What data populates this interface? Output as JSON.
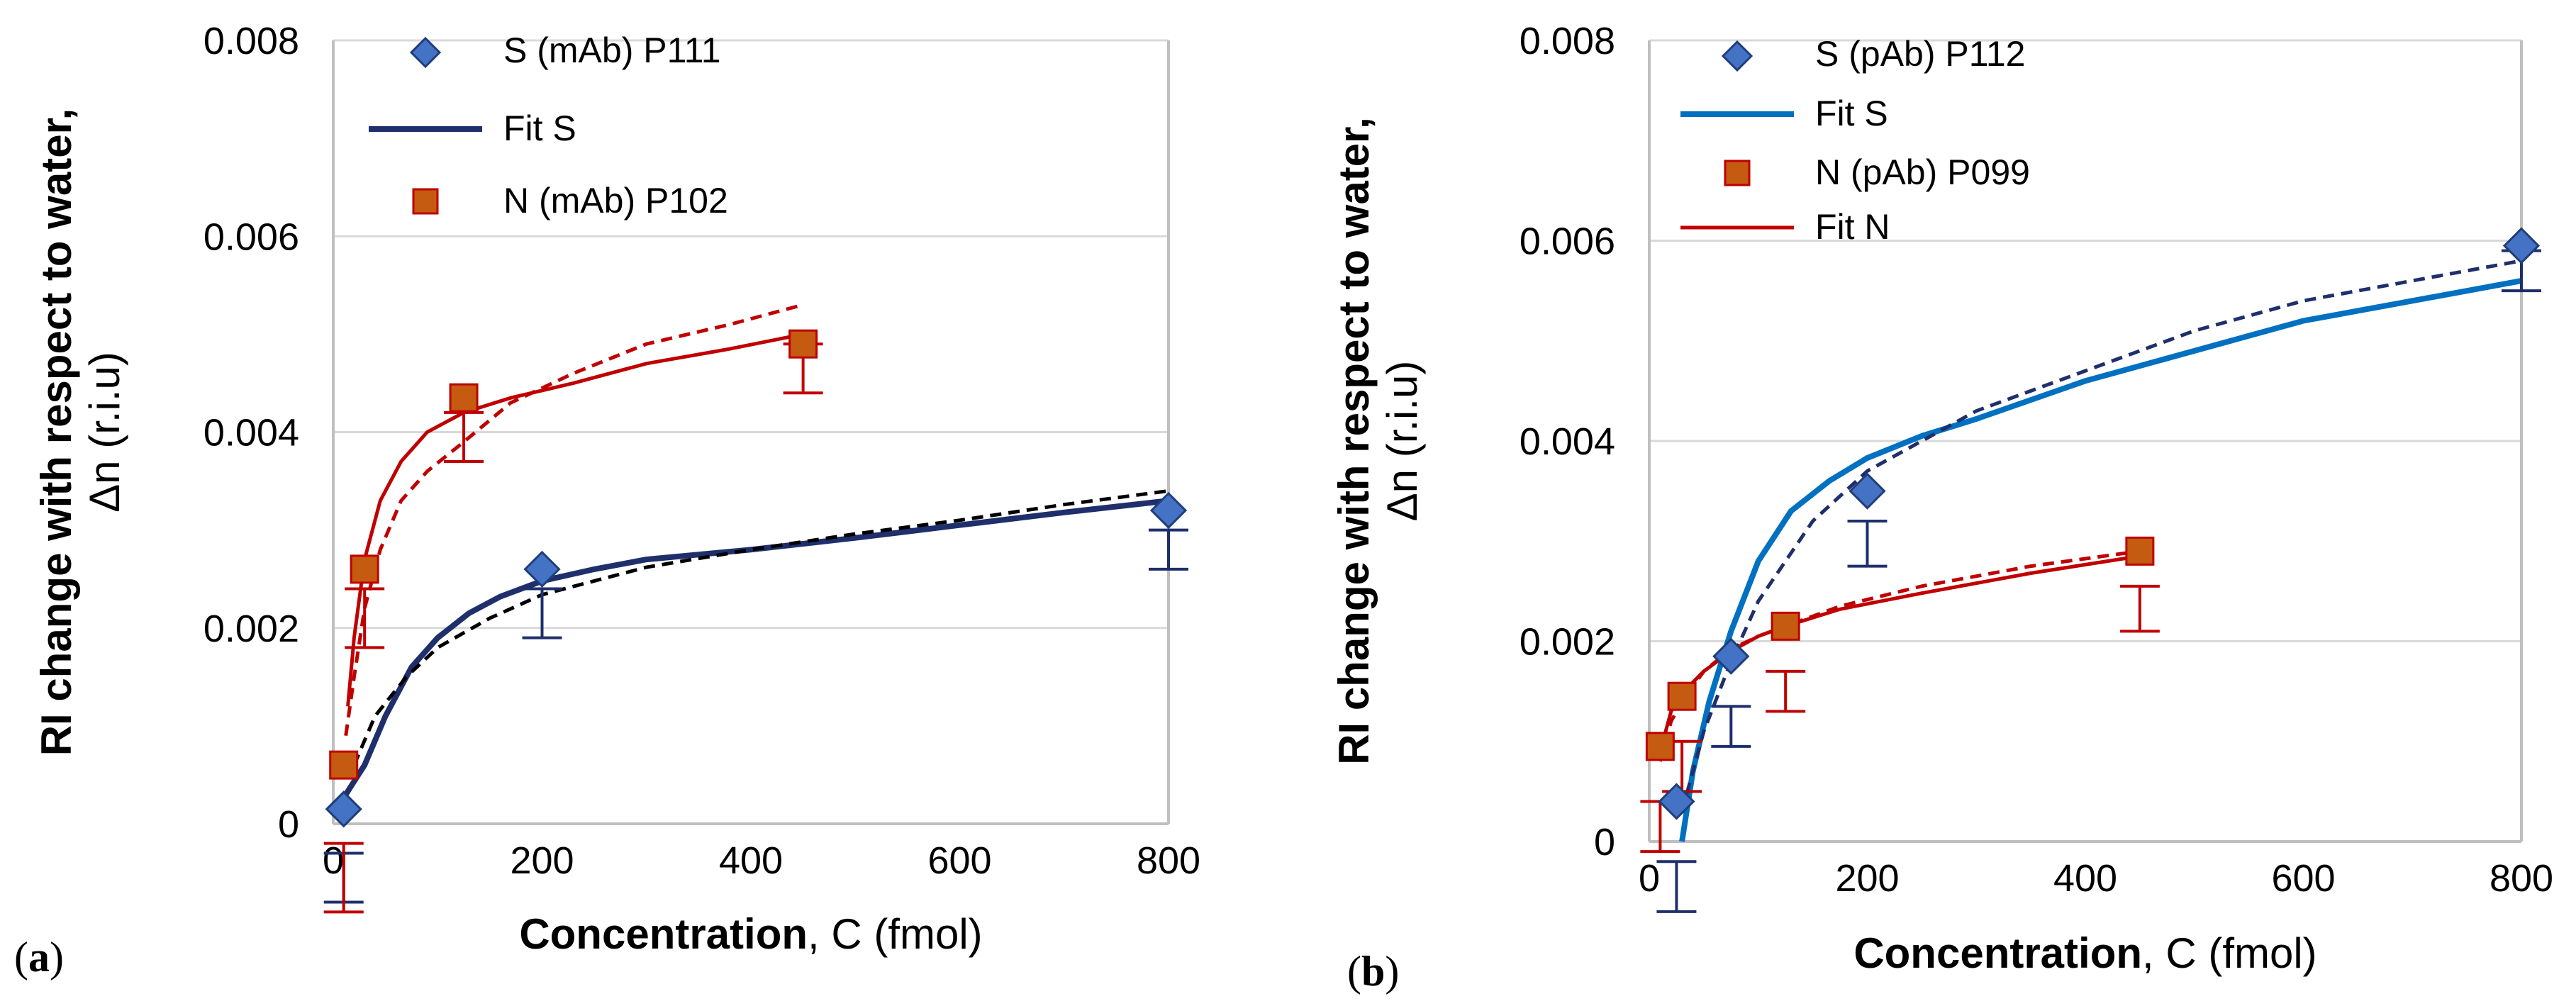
{
  "chart_data": [
    {
      "type": "scatter",
      "panel": "(a)",
      "panel_letter": "a",
      "ylabel": "RI change with respect to water,",
      "ylabel2": "Δn (r.i.u)",
      "xlabel_bold": "Concentration",
      "xlabel_rest": ", C (fmol)",
      "xlim": [
        0,
        800
      ],
      "ylim": [
        0,
        0.008
      ],
      "x_ticks": [
        "0",
        "200",
        "400",
        "600",
        "800"
      ],
      "y_ticks": [
        "0",
        "0.002",
        "0.004",
        "0.006",
        "0.008"
      ],
      "colors": {
        "S": "#4472c4",
        "S_edge": "#1f3d7a",
        "S_fit": "#1f2f6b",
        "N": "#c55a11",
        "N_edge": "#c00000",
        "N_fit": "#c00000",
        "S_dash": "#000000",
        "N_dash": "#c00000",
        "err_S": "#1f2f6b",
        "err_N": "#c00000"
      },
      "legend": {
        "s_points": "S (mAb) P111",
        "s_fit": "Fit S",
        "n_points": "N (mAb) P102"
      },
      "series": [
        {
          "name": "S (mAb) P111",
          "x": [
            10,
            200,
            800
          ],
          "y": [
            0.00015,
            0.0026,
            0.0032
          ]
        },
        {
          "name": "N (mAb) P102",
          "x": [
            10,
            30,
            125,
            450
          ],
          "y": [
            0.0006,
            0.0026,
            0.00435,
            0.0049
          ]
        }
      ],
      "fits": [
        {
          "name": "Fit S",
          "style": "solid",
          "color": "#1f2f6b",
          "x": [
            12,
            30,
            50,
            75,
            100,
            130,
            160,
            200,
            250,
            300,
            400,
            500,
            600,
            700,
            800
          ],
          "y": [
            0.0003,
            0.0006,
            0.0011,
            0.0016,
            0.0019,
            0.00215,
            0.00232,
            0.00248,
            0.0026,
            0.0027,
            0.0028,
            0.00292,
            0.00305,
            0.00318,
            0.0033
          ]
        },
        {
          "name": "dashed S",
          "style": "dashed",
          "color": "#000000",
          "x": [
            20,
            40,
            70,
            100,
            150,
            200,
            300,
            400,
            500,
            600,
            700,
            800
          ],
          "y": [
            0.0006,
            0.0011,
            0.0015,
            0.0018,
            0.0021,
            0.00234,
            0.00262,
            0.0028,
            0.00296,
            0.0031,
            0.00326,
            0.0034
          ]
        },
        {
          "name": "Fit N",
          "style": "solid",
          "color": "#c00000",
          "x": [
            14,
            20,
            30,
            45,
            65,
            90,
            125,
            170,
            230,
            300,
            380,
            450
          ],
          "y": [
            0.0012,
            0.0019,
            0.0027,
            0.0033,
            0.0037,
            0.004,
            0.0042,
            0.00435,
            0.0045,
            0.0047,
            0.00485,
            0.005
          ]
        },
        {
          "name": "dashed N",
          "style": "dashed",
          "color": "#c00000",
          "x": [
            12,
            20,
            30,
            45,
            65,
            90,
            125,
            170,
            230,
            300,
            380,
            450
          ],
          "y": [
            0.0009,
            0.0015,
            0.0022,
            0.0028,
            0.0033,
            0.0036,
            0.0039,
            0.0043,
            0.0046,
            0.0049,
            0.0051,
            0.0053
          ]
        }
      ],
      "error_bars": [
        {
          "series": "S",
          "x": 10,
          "y_low": -0.0008,
          "y_high": -0.0003
        },
        {
          "series": "S",
          "x": 200,
          "y_low": 0.0019,
          "y_high": 0.0024
        },
        {
          "series": "S",
          "x": 800,
          "y_low": 0.0026,
          "y_high": 0.003
        },
        {
          "series": "N",
          "x": 10,
          "y_low": -0.0009,
          "y_high": -0.0002
        },
        {
          "series": "N",
          "x": 30,
          "y_low": 0.0018,
          "y_high": 0.0024
        },
        {
          "series": "N",
          "x": 125,
          "y_low": 0.0037,
          "y_high": 0.0042
        },
        {
          "series": "N",
          "x": 450,
          "y_low": 0.0044,
          "y_high": 0.0049
        }
      ]
    },
    {
      "type": "scatter",
      "panel": "(b)",
      "panel_letter": "b",
      "ylabel": "RI change with respect to water,",
      "ylabel2": "Δn (r.i.u)",
      "xlabel_bold": "Concentration",
      "xlabel_rest": ", C (fmol)",
      "xlim": [
        0,
        800
      ],
      "ylim": [
        0,
        0.008
      ],
      "x_ticks": [
        "0",
        "200",
        "400",
        "600",
        "800"
      ],
      "y_ticks": [
        "0",
        "0.002",
        "0.004",
        "0.006",
        "0.008"
      ],
      "colors": {
        "S": "#4472c4",
        "S_edge": "#1f3d7a",
        "S_fit": "#0070c0",
        "N": "#c55a11",
        "N_edge": "#c00000",
        "N_fit": "#c00000",
        "S_dash": "#1f2f6b",
        "N_dash": "#c00000",
        "err_S": "#1f2f6b",
        "err_N": "#c00000"
      },
      "legend": {
        "s_points": "S (pAb) P112",
        "s_fit": "Fit S",
        "n_points": "N (pAb) P099",
        "n_fit": "Fit N"
      },
      "series": [
        {
          "name": "S (pAb) P112",
          "x": [
            25,
            75,
            200,
            800
          ],
          "y": [
            0.0004,
            0.00185,
            0.0035,
            0.00595
          ]
        },
        {
          "name": "N (pAb) P099",
          "x": [
            10,
            30,
            125,
            450
          ],
          "y": [
            0.00095,
            0.00145,
            0.00215,
            0.0029
          ]
        }
      ],
      "fits": [
        {
          "name": "Fit S",
          "style": "solid",
          "color": "#0070c0",
          "x": [
            30,
            40,
            55,
            75,
            100,
            130,
            165,
            200,
            250,
            300,
            400,
            500,
            600,
            700,
            800
          ],
          "y": [
            0.0,
            0.0007,
            0.0014,
            0.0021,
            0.0028,
            0.0033,
            0.0036,
            0.00383,
            0.00405,
            0.00422,
            0.0046,
            0.0049,
            0.0052,
            0.0054,
            0.0056
          ]
        },
        {
          "name": "dashed S",
          "style": "dashed",
          "color": "#1f2f6b",
          "x": [
            30,
            50,
            75,
            100,
            150,
            200,
            300,
            400,
            500,
            600,
            700,
            800
          ],
          "y": [
            0.0003,
            0.0011,
            0.0018,
            0.0024,
            0.0032,
            0.0037,
            0.0043,
            0.0047,
            0.0051,
            0.0054,
            0.0056,
            0.0058
          ]
        },
        {
          "name": "Fit N",
          "style": "solid",
          "color": "#c00000",
          "x": [
            10,
            20,
            30,
            50,
            75,
            100,
            125,
            175,
            250,
            350,
            450
          ],
          "y": [
            0.0009,
            0.0013,
            0.00148,
            0.0017,
            0.0019,
            0.00205,
            0.00215,
            0.00232,
            0.00248,
            0.00268,
            0.00285
          ]
        },
        {
          "name": "dashed N",
          "style": "dashed",
          "color": "#c00000",
          "x": [
            10,
            20,
            30,
            50,
            75,
            100,
            125,
            175,
            250,
            350,
            450
          ],
          "y": [
            0.0008,
            0.0012,
            0.0014,
            0.0017,
            0.00192,
            0.00205,
            0.00215,
            0.00235,
            0.00255,
            0.00275,
            0.0029
          ]
        }
      ],
      "error_bars": [
        {
          "series": "S",
          "x": 25,
          "y_low": -0.0007,
          "y_high": -0.0002
        },
        {
          "series": "S",
          "x": 75,
          "y_low": 0.00095,
          "y_high": 0.00135
        },
        {
          "series": "S",
          "x": 200,
          "y_low": 0.00275,
          "y_high": 0.0032
        },
        {
          "series": "S",
          "x": 800,
          "y_low": 0.0055,
          "y_high": 0.0059
        },
        {
          "series": "N",
          "x": 10,
          "y_low": -0.0001,
          "y_high": 0.0004
        },
        {
          "series": "N",
          "x": 30,
          "y_low": 0.0005,
          "y_high": 0.001
        },
        {
          "series": "N",
          "x": 125,
          "y_low": 0.0013,
          "y_high": 0.0017
        },
        {
          "series": "N",
          "x": 450,
          "y_low": 0.0021,
          "y_high": 0.00255
        }
      ]
    }
  ]
}
